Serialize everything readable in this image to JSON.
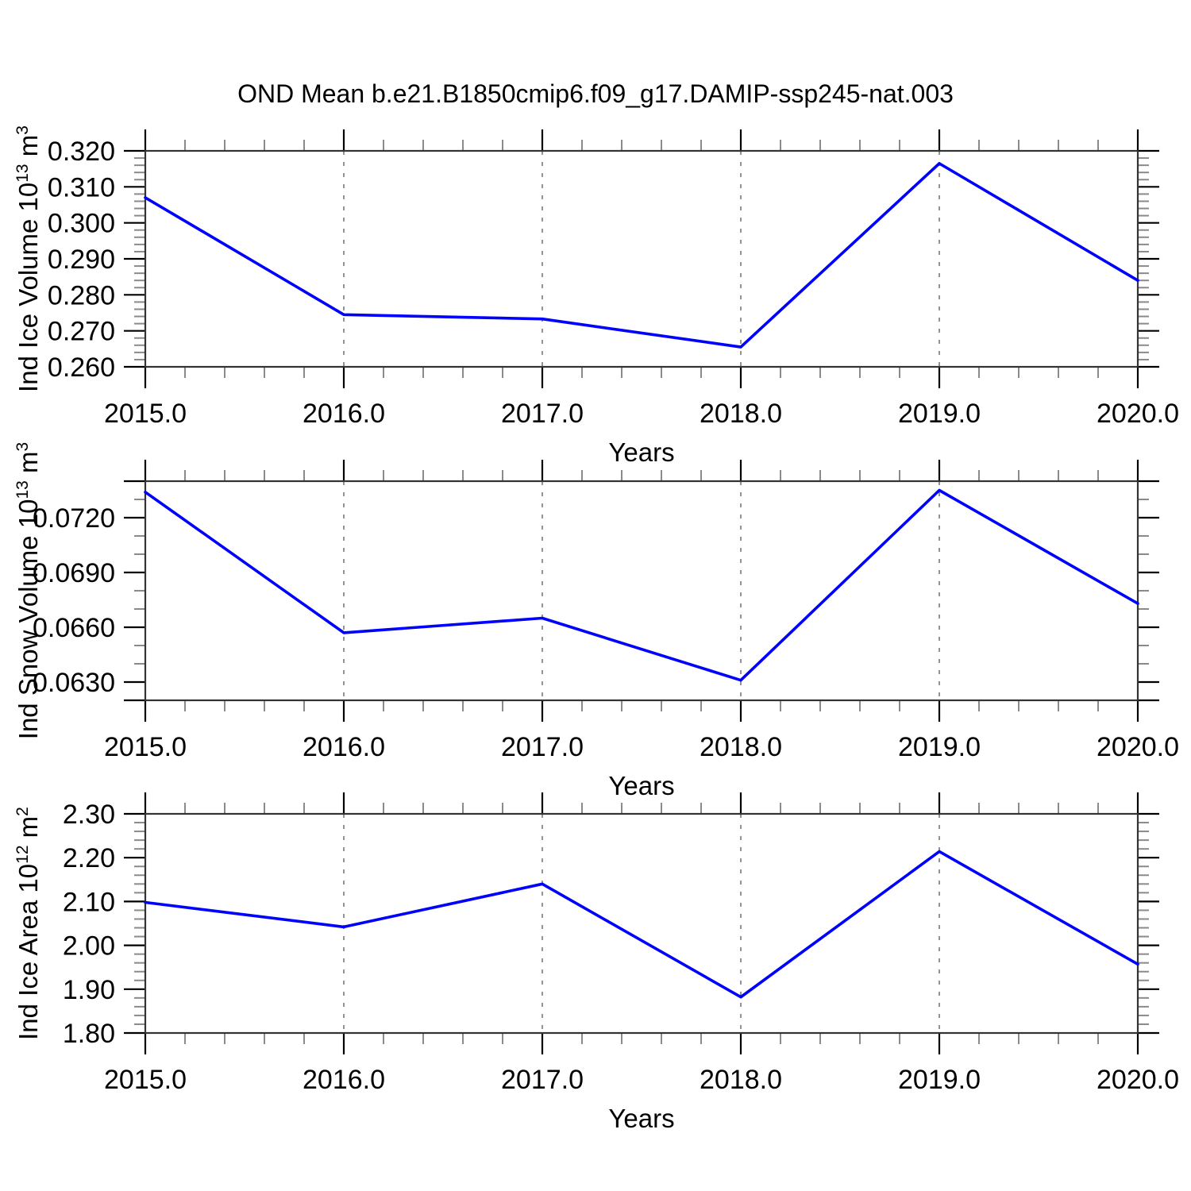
{
  "title": "OND Mean b.e21.B1850cmip6.f09_g17.DAMIP-ssp245-nat.003",
  "colors": {
    "line": "#0000ff",
    "frame": "#333333",
    "major_tick": "#000000",
    "minor_tick": "#8a8a8a",
    "grid": "#787878",
    "text": "#000000"
  },
  "axes": {
    "xlabel": "Years",
    "xlim": [
      2015,
      2020
    ],
    "xticks": [
      {
        "v": 2015,
        "label": "2015.0"
      },
      {
        "v": 2016,
        "label": "2016.0"
      },
      {
        "v": 2017,
        "label": "2017.0"
      },
      {
        "v": 2018,
        "label": "2018.0"
      },
      {
        "v": 2019,
        "label": "2019.0"
      },
      {
        "v": 2020,
        "label": "2020.0"
      }
    ],
    "xminor_step": 0.2,
    "grid_x": [
      2016,
      2017,
      2018,
      2019
    ]
  },
  "chart_data": [
    {
      "type": "line",
      "name": "ind-ice-volume",
      "ylabel_text": "Ind Ice Volume 10^13 m^3",
      "ylabel_parts": [
        {
          "t": "Ind Ice Volume 10"
        },
        {
          "t": "13",
          "sup": true
        },
        {
          "t": " m"
        },
        {
          "t": "3",
          "sup": true
        }
      ],
      "x": [
        2015,
        2016,
        2017,
        2018,
        2019,
        2020
      ],
      "values": [
        0.307,
        0.2745,
        0.2733,
        0.2655,
        0.3165,
        0.284
      ],
      "ylim": [
        0.26,
        0.32
      ],
      "yticks": [
        {
          "v": 0.26,
          "label": "0.260"
        },
        {
          "v": 0.27,
          "label": "0.270"
        },
        {
          "v": 0.28,
          "label": "0.280"
        },
        {
          "v": 0.29,
          "label": "0.290"
        },
        {
          "v": 0.3,
          "label": "0.300"
        },
        {
          "v": 0.31,
          "label": "0.310"
        },
        {
          "v": 0.32,
          "label": "0.320"
        }
      ],
      "yminor_step": 0.002
    },
    {
      "type": "line",
      "name": "ind-snow-volume",
      "ylabel_text": "Ind Snow Volume 10^13 m^3",
      "ylabel_parts": [
        {
          "t": "Ind Snow Volume 10"
        },
        {
          "t": "13",
          "sup": true
        },
        {
          "t": " m"
        },
        {
          "t": "3",
          "sup": true
        }
      ],
      "x": [
        2015,
        2016,
        2017,
        2018,
        2019,
        2020
      ],
      "values": [
        0.0734,
        0.0657,
        0.0665,
        0.0631,
        0.0735,
        0.0673
      ],
      "ylim": [
        0.062,
        0.074
      ],
      "yticks": [
        {
          "v": 0.063,
          "label": "0.0630"
        },
        {
          "v": 0.066,
          "label": "0.0660"
        },
        {
          "v": 0.069,
          "label": "0.0690"
        },
        {
          "v": 0.072,
          "label": "0.0720"
        }
      ],
      "yminor_step": 0.001
    },
    {
      "type": "line",
      "name": "ind-ice-area",
      "ylabel_text": "Ind Ice Area 10^12 m^2",
      "ylabel_parts": [
        {
          "t": "Ind Ice Area 10"
        },
        {
          "t": "12",
          "sup": true
        },
        {
          "t": " m"
        },
        {
          "t": "2",
          "sup": true
        }
      ],
      "x": [
        2015,
        2016,
        2017,
        2018,
        2019,
        2020
      ],
      "values": [
        2.098,
        2.042,
        2.14,
        1.882,
        2.214,
        1.957
      ],
      "ylim": [
        1.8,
        2.3
      ],
      "yticks": [
        {
          "v": 1.8,
          "label": "1.80"
        },
        {
          "v": 1.9,
          "label": "1.90"
        },
        {
          "v": 2.0,
          "label": "2.00"
        },
        {
          "v": 2.1,
          "label": "2.10"
        },
        {
          "v": 2.2,
          "label": "2.20"
        },
        {
          "v": 2.3,
          "label": "2.30"
        }
      ],
      "yminor_step": 0.02
    }
  ]
}
